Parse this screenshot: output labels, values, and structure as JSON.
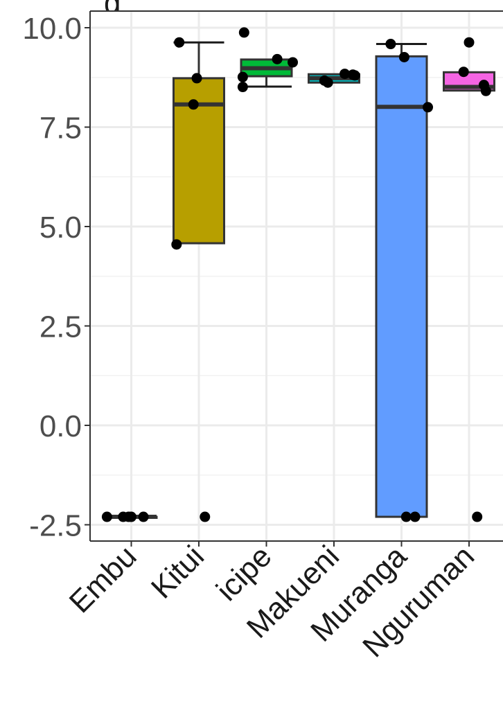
{
  "chart_data": {
    "type": "box",
    "title_visible": "g",
    "ylim": [
      -2.7,
      10.25
    ],
    "yticks": [
      -2.5,
      0.0,
      2.5,
      5.0,
      7.5,
      10.0
    ],
    "ytick_labels": [
      "-2.5",
      "0.0",
      "2.5",
      "5.0",
      "7.5",
      "10.0"
    ],
    "grid": true,
    "categories": [
      "Embu",
      "Kitui",
      "icipe",
      "Makueni",
      "Muranga",
      "Nguruman"
    ],
    "boxes": [
      {
        "category": "Embu",
        "fill": "#f8766d",
        "q1": -2.3,
        "median": -2.3,
        "q3": -2.3,
        "whisker_low": -2.3,
        "whisker_high": -2.3,
        "points": [
          [
            -0.36,
            -2.3
          ],
          [
            -0.12,
            -2.3
          ],
          [
            -0.04,
            -2.3
          ],
          [
            0.0,
            -2.3
          ],
          [
            0.18,
            -2.3
          ]
        ]
      },
      {
        "category": "Kitui",
        "fill": "#b79f00",
        "q1": 4.58,
        "median": 8.07,
        "q3": 8.73,
        "whisker_low": 4.58,
        "whisker_high": 9.63,
        "points": [
          [
            -0.33,
            4.55
          ],
          [
            -0.08,
            8.07
          ],
          [
            -0.03,
            8.73
          ],
          [
            -0.29,
            9.63
          ],
          [
            0.09,
            -2.3
          ]
        ]
      },
      {
        "category": "icipe",
        "fill": "#00ba38",
        "q1": 8.78,
        "median": 8.98,
        "q3": 9.2,
        "whisker_low": 8.52,
        "whisker_high": 9.2,
        "points": [
          [
            -0.33,
            9.88
          ],
          [
            -0.35,
            8.76
          ],
          [
            -0.35,
            8.51
          ],
          [
            0.16,
            9.21
          ],
          [
            0.39,
            9.13
          ]
        ]
      },
      {
        "category": "Makueni",
        "fill": "#00bfc4",
        "q1": 8.62,
        "median": 8.73,
        "q3": 8.83,
        "whisker_low": 8.62,
        "whisker_high": 8.83,
        "points": [
          [
            -0.14,
            8.67
          ],
          [
            -0.09,
            8.62
          ],
          [
            0.16,
            8.84
          ],
          [
            0.28,
            8.82
          ],
          [
            0.31,
            8.8
          ]
        ]
      },
      {
        "category": "Muranga",
        "fill": "#619cff",
        "q1": -2.3,
        "median": 8.01,
        "q3": 9.28,
        "whisker_low": -2.3,
        "whisker_high": 9.59,
        "points": [
          [
            -0.16,
            9.59
          ],
          [
            0.04,
            9.26
          ],
          [
            0.39,
            8.0
          ],
          [
            0.07,
            -2.3
          ],
          [
            0.2,
            -2.3
          ]
        ]
      },
      {
        "category": "Nguruman",
        "fill": "#f564e3",
        "q1": 8.42,
        "median": 8.51,
        "q3": 8.88,
        "whisker_low": 8.42,
        "whisker_high": 8.88,
        "points": [
          [
            -0.08,
            8.89
          ],
          [
            0.0,
            9.63
          ],
          [
            0.22,
            8.56
          ],
          [
            0.25,
            8.41
          ],
          [
            0.12,
            -2.3
          ]
        ]
      }
    ]
  }
}
